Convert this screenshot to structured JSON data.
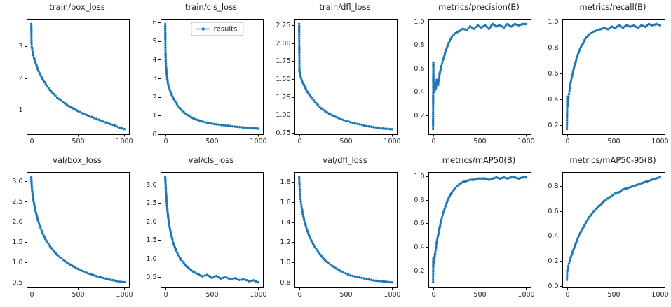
{
  "figure": {
    "background": "#ffffff",
    "accent_color": "#1f77b4",
    "axis_color": "#000000",
    "text_color": "#262626",
    "legend_border_color": "#b3b3b3"
  },
  "chart_data": [
    {
      "id": "train-box-loss",
      "type": "line",
      "title": "train/box_loss",
      "xlim": [
        -50,
        1050
      ],
      "ylim": [
        0.24,
        3.86
      ],
      "xticks": [
        0,
        500,
        1000
      ],
      "xtick_labels": [
        "0",
        "500",
        "1000"
      ],
      "yticks": [
        1,
        2,
        3
      ],
      "ytick_labels": [
        "1",
        "2",
        "3"
      ],
      "x": [
        0,
        3,
        6,
        10,
        15,
        22,
        30,
        40,
        55,
        70,
        90,
        110,
        140,
        170,
        200,
        240,
        280,
        320,
        360,
        400,
        450,
        500,
        550,
        600,
        650,
        700,
        750,
        800,
        850,
        900,
        950,
        1000
      ],
      "y": [
        3.7,
        3.05,
        2.97,
        2.9,
        2.82,
        2.72,
        2.63,
        2.52,
        2.4,
        2.28,
        2.15,
        2.03,
        1.88,
        1.75,
        1.63,
        1.5,
        1.39,
        1.3,
        1.21,
        1.13,
        1.05,
        0.97,
        0.9,
        0.84,
        0.78,
        0.72,
        0.67,
        0.61,
        0.56,
        0.51,
        0.45,
        0.4
      ]
    },
    {
      "id": "train-cls-loss",
      "type": "line",
      "title": "train/cls_loss",
      "legend": {
        "visible": true,
        "label": "results"
      },
      "xlim": [
        -50,
        1050
      ],
      "ylim": [
        0.0,
        6.18
      ],
      "xticks": [
        0,
        500,
        1000
      ],
      "xtick_labels": [
        "0",
        "500",
        "1000"
      ],
      "yticks": [
        0,
        1,
        2,
        3,
        4,
        5,
        6
      ],
      "ytick_labels": [
        "0",
        "1",
        "2",
        "3",
        "4",
        "5",
        "6"
      ],
      "x": [
        0,
        3,
        6,
        10,
        15,
        22,
        30,
        40,
        55,
        70,
        90,
        110,
        140,
        170,
        200,
        240,
        280,
        320,
        360,
        400,
        450,
        500,
        550,
        600,
        650,
        700,
        750,
        800,
        850,
        900,
        950,
        1000
      ],
      "y": [
        5.9,
        4.3,
        3.9,
        3.55,
        3.25,
        2.95,
        2.72,
        2.5,
        2.28,
        2.1,
        1.9,
        1.72,
        1.5,
        1.32,
        1.17,
        1.02,
        0.9,
        0.81,
        0.74,
        0.68,
        0.62,
        0.57,
        0.53,
        0.5,
        0.47,
        0.44,
        0.41,
        0.39,
        0.36,
        0.34,
        0.32,
        0.3
      ]
    },
    {
      "id": "train-dfl-loss",
      "type": "line",
      "title": "train/dfl_loss",
      "xlim": [
        -50,
        1050
      ],
      "ylim": [
        0.73,
        2.34
      ],
      "xticks": [
        0,
        500,
        1000
      ],
      "xtick_labels": [
        "0",
        "500",
        "1000"
      ],
      "yticks": [
        0.75,
        1.0,
        1.25,
        1.5,
        1.75,
        2.0,
        2.25
      ],
      "ytick_labels": [
        "0.75",
        "1.00",
        "1.25",
        "1.50",
        "1.75",
        "2.00",
        "2.25"
      ],
      "x": [
        0,
        3,
        6,
        10,
        15,
        22,
        30,
        40,
        55,
        70,
        90,
        110,
        140,
        170,
        200,
        240,
        280,
        320,
        360,
        400,
        450,
        500,
        550,
        600,
        650,
        700,
        750,
        800,
        850,
        900,
        950,
        1000
      ],
      "y": [
        2.27,
        1.63,
        1.6,
        1.57,
        1.54,
        1.51,
        1.48,
        1.45,
        1.41,
        1.37,
        1.32,
        1.28,
        1.23,
        1.18,
        1.14,
        1.09,
        1.05,
        1.02,
        0.99,
        0.97,
        0.94,
        0.92,
        0.9,
        0.88,
        0.87,
        0.85,
        0.84,
        0.83,
        0.82,
        0.81,
        0.805,
        0.8
      ]
    },
    {
      "id": "metrics-precision-b",
      "type": "line",
      "title": "metrics/precision(B)",
      "xlim": [
        -50,
        1050
      ],
      "ylim": [
        0.035,
        1.025
      ],
      "xticks": [
        0,
        500,
        1000
      ],
      "xtick_labels": [
        "0",
        "500",
        "1000"
      ],
      "yticks": [
        0.2,
        0.4,
        0.6,
        0.8,
        1.0
      ],
      "ytick_labels": [
        "0.2",
        "0.4",
        "0.6",
        "0.8",
        "1.0"
      ],
      "x": [
        0,
        3,
        6,
        10,
        15,
        22,
        30,
        40,
        55,
        70,
        90,
        110,
        140,
        170,
        200,
        240,
        280,
        320,
        360,
        400,
        440,
        480,
        520,
        560,
        600,
        640,
        680,
        720,
        760,
        800,
        840,
        880,
        920,
        960,
        1000
      ],
      "y": [
        0.08,
        0.65,
        0.5,
        0.44,
        0.4,
        0.47,
        0.43,
        0.5,
        0.46,
        0.55,
        0.62,
        0.68,
        0.76,
        0.82,
        0.87,
        0.9,
        0.92,
        0.94,
        0.93,
        0.96,
        0.94,
        0.97,
        0.95,
        0.97,
        0.94,
        0.98,
        0.96,
        0.97,
        0.95,
        0.98,
        0.96,
        0.98,
        0.97,
        0.98,
        0.98
      ]
    },
    {
      "id": "metrics-recall-b",
      "type": "line",
      "title": "metrics/recall(B)",
      "xlim": [
        -50,
        1050
      ],
      "ylim": [
        0.13,
        1.02
      ],
      "xticks": [
        0,
        500,
        1000
      ],
      "xtick_labels": [
        "0",
        "500",
        "1000"
      ],
      "yticks": [
        0.2,
        0.4,
        0.6,
        0.8,
        1.0
      ],
      "ytick_labels": [
        "0.2",
        "0.4",
        "0.6",
        "0.8",
        "1.0"
      ],
      "x": [
        0,
        3,
        6,
        10,
        15,
        22,
        30,
        40,
        55,
        70,
        90,
        110,
        140,
        170,
        200,
        240,
        280,
        320,
        360,
        400,
        440,
        480,
        520,
        560,
        600,
        640,
        680,
        720,
        760,
        800,
        840,
        880,
        920,
        960,
        1000
      ],
      "y": [
        0.17,
        0.42,
        0.38,
        0.35,
        0.4,
        0.44,
        0.48,
        0.53,
        0.58,
        0.63,
        0.68,
        0.73,
        0.79,
        0.83,
        0.87,
        0.9,
        0.92,
        0.93,
        0.94,
        0.95,
        0.94,
        0.96,
        0.95,
        0.97,
        0.95,
        0.97,
        0.96,
        0.97,
        0.95,
        0.97,
        0.96,
        0.98,
        0.97,
        0.98,
        0.97
      ]
    },
    {
      "id": "val-box-loss",
      "type": "line",
      "title": "val/box_loss",
      "xlim": [
        -50,
        1050
      ],
      "ylim": [
        0.38,
        3.23
      ],
      "xticks": [
        0,
        500,
        1000
      ],
      "xtick_labels": [
        "0",
        "500",
        "1000"
      ],
      "yticks": [
        0.5,
        1.0,
        1.5,
        2.0,
        2.5,
        3.0
      ],
      "ytick_labels": [
        "0.5",
        "1.0",
        "1.5",
        "2.0",
        "2.5",
        "3.0"
      ],
      "x": [
        0,
        3,
        6,
        10,
        15,
        22,
        30,
        40,
        55,
        70,
        90,
        110,
        140,
        170,
        200,
        240,
        280,
        320,
        360,
        400,
        450,
        500,
        550,
        600,
        650,
        700,
        750,
        800,
        850,
        900,
        950,
        1000
      ],
      "y": [
        3.1,
        2.95,
        2.85,
        2.75,
        2.65,
        2.55,
        2.45,
        2.32,
        2.18,
        2.05,
        1.9,
        1.78,
        1.62,
        1.5,
        1.4,
        1.28,
        1.18,
        1.1,
        1.03,
        0.97,
        0.9,
        0.84,
        0.79,
        0.74,
        0.7,
        0.66,
        0.63,
        0.6,
        0.57,
        0.55,
        0.52,
        0.51
      ]
    },
    {
      "id": "val-cls-loss",
      "type": "line",
      "title": "val/cls_loss",
      "xlim": [
        -50,
        1050
      ],
      "ylim": [
        0.22,
        3.34
      ],
      "xticks": [
        0,
        500,
        1000
      ],
      "xtick_labels": [
        "0",
        "500",
        "1000"
      ],
      "yticks": [
        0.5,
        1.0,
        1.5,
        2.0,
        2.5,
        3.0
      ],
      "ytick_labels": [
        "0.5",
        "1.0",
        "1.5",
        "2.0",
        "2.5",
        "3.0"
      ],
      "x": [
        0,
        3,
        6,
        10,
        15,
        22,
        30,
        40,
        55,
        70,
        90,
        110,
        140,
        170,
        200,
        240,
        280,
        320,
        360,
        400,
        450,
        500,
        550,
        600,
        650,
        700,
        750,
        800,
        850,
        900,
        950,
        1000
      ],
      "y": [
        3.2,
        3.05,
        2.9,
        2.75,
        2.55,
        2.35,
        2.15,
        1.95,
        1.75,
        1.58,
        1.4,
        1.26,
        1.1,
        0.97,
        0.87,
        0.76,
        0.68,
        0.62,
        0.57,
        0.52,
        0.56,
        0.48,
        0.53,
        0.46,
        0.5,
        0.44,
        0.47,
        0.42,
        0.44,
        0.39,
        0.41,
        0.36
      ]
    },
    {
      "id": "val-dfl-loss",
      "type": "line",
      "title": "val/dfl_loss",
      "xlim": [
        -50,
        1050
      ],
      "ylim": [
        0.75,
        1.9
      ],
      "xticks": [
        0,
        500,
        1000
      ],
      "xtick_labels": [
        "0",
        "500",
        "1000"
      ],
      "yticks": [
        0.8,
        1.0,
        1.2,
        1.4,
        1.6,
        1.8
      ],
      "ytick_labels": [
        "0.8",
        "1.0",
        "1.2",
        "1.4",
        "1.6",
        "1.8"
      ],
      "x": [
        0,
        3,
        6,
        10,
        15,
        22,
        30,
        40,
        55,
        70,
        90,
        110,
        140,
        170,
        200,
        240,
        280,
        320,
        360,
        400,
        450,
        500,
        550,
        600,
        650,
        700,
        750,
        800,
        850,
        900,
        950,
        1000
      ],
      "y": [
        1.85,
        1.78,
        1.73,
        1.68,
        1.63,
        1.58,
        1.53,
        1.48,
        1.42,
        1.37,
        1.31,
        1.26,
        1.2,
        1.15,
        1.11,
        1.06,
        1.02,
        0.99,
        0.96,
        0.94,
        0.91,
        0.89,
        0.87,
        0.86,
        0.85,
        0.84,
        0.83,
        0.82,
        0.815,
        0.81,
        0.805,
        0.8
      ]
    },
    {
      "id": "metrics-map50-b",
      "type": "line",
      "title": "metrics/mAP50(B)",
      "xlim": [
        -50,
        1050
      ],
      "ylim": [
        0.055,
        1.035
      ],
      "xticks": [
        0,
        500,
        1000
      ],
      "xtick_labels": [
        "0",
        "500",
        "1000"
      ],
      "yticks": [
        0.2,
        0.4,
        0.6,
        0.8,
        1.0
      ],
      "ytick_labels": [
        "0.2",
        "0.4",
        "0.6",
        "0.8",
        "1.0"
      ],
      "x": [
        0,
        3,
        6,
        10,
        15,
        22,
        30,
        40,
        55,
        70,
        90,
        110,
        140,
        170,
        200,
        240,
        280,
        320,
        360,
        400,
        440,
        480,
        520,
        560,
        600,
        640,
        680,
        720,
        760,
        800,
        840,
        880,
        920,
        960,
        1000
      ],
      "y": [
        0.1,
        0.3,
        0.28,
        0.26,
        0.3,
        0.34,
        0.38,
        0.44,
        0.5,
        0.56,
        0.63,
        0.69,
        0.76,
        0.82,
        0.86,
        0.9,
        0.93,
        0.95,
        0.96,
        0.97,
        0.97,
        0.98,
        0.98,
        0.98,
        0.97,
        0.98,
        0.99,
        0.98,
        0.99,
        0.98,
        0.99,
        0.99,
        0.98,
        0.99,
        0.99
      ]
    },
    {
      "id": "metrics-map50-95-b",
      "type": "line",
      "title": "metrics/mAP50-95(B)",
      "xlim": [
        -50,
        1050
      ],
      "ylim": [
        -0.01,
        0.91
      ],
      "xticks": [
        0,
        500,
        1000
      ],
      "xtick_labels": [
        "0",
        "500",
        "1000"
      ],
      "yticks": [
        0.0,
        0.2,
        0.4,
        0.6,
        0.8
      ],
      "ytick_labels": [
        "0.0",
        "0.2",
        "0.4",
        "0.6",
        "0.8"
      ],
      "x": [
        0,
        3,
        6,
        10,
        15,
        22,
        30,
        40,
        55,
        70,
        90,
        110,
        140,
        170,
        200,
        240,
        280,
        320,
        360,
        400,
        440,
        480,
        520,
        560,
        600,
        640,
        680,
        720,
        760,
        800,
        840,
        880,
        920,
        960,
        1000
      ],
      "y": [
        0.05,
        0.12,
        0.13,
        0.14,
        0.16,
        0.18,
        0.2,
        0.23,
        0.26,
        0.29,
        0.33,
        0.37,
        0.42,
        0.46,
        0.5,
        0.55,
        0.59,
        0.62,
        0.65,
        0.68,
        0.7,
        0.72,
        0.74,
        0.75,
        0.77,
        0.78,
        0.79,
        0.8,
        0.81,
        0.82,
        0.83,
        0.84,
        0.85,
        0.86,
        0.87
      ]
    }
  ]
}
